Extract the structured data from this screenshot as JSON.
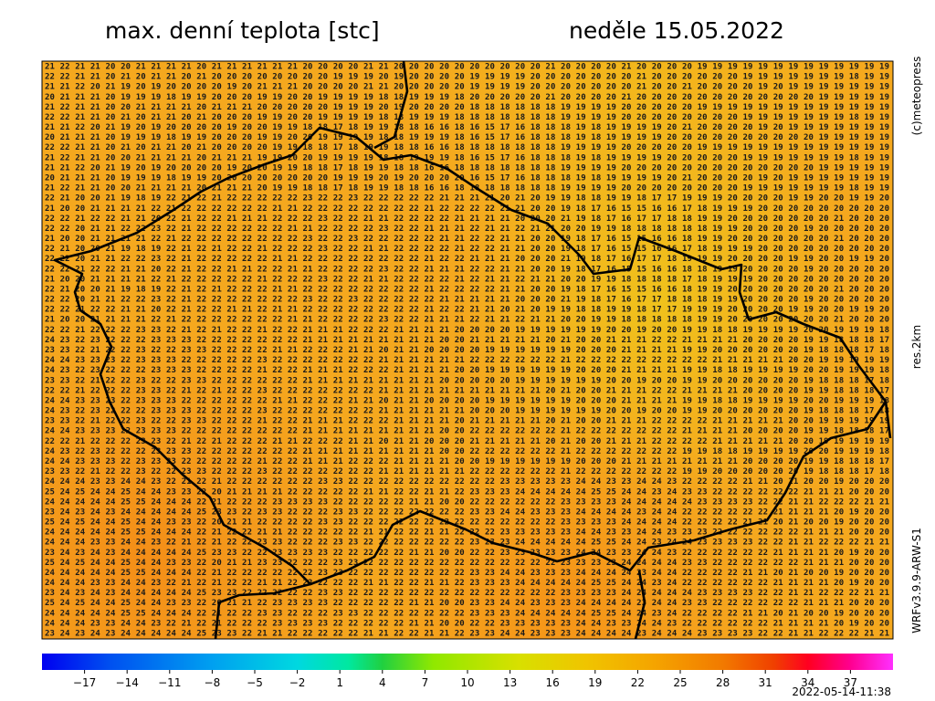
{
  "header": {
    "title": "max. denní teplota [stc]",
    "date": "neděle 15.05.2022"
  },
  "side": {
    "copyright": "(c)meteopress",
    "resolution": "res.2km",
    "model": "WRFv3.9.9-ARW-S1"
  },
  "footer": {
    "timestamp": "2022-05-14-11:38"
  },
  "colorbar": {
    "lim": [
      -20,
      40
    ],
    "ticks": [
      {
        "value": -17,
        "label": "−17"
      },
      {
        "value": -14,
        "label": "−14"
      },
      {
        "value": -11,
        "label": "−11"
      },
      {
        "value": -8,
        "label": "−8"
      },
      {
        "value": -5,
        "label": "−5"
      },
      {
        "value": -2,
        "label": "−2"
      },
      1,
      4,
      7,
      10,
      13,
      16,
      19,
      22,
      25,
      28,
      31,
      34,
      37
    ]
  },
  "map": {
    "rows": [
      "21 22 21 21 20 20 21 21 21 21 20 21 21 21 21 21 21 20 20 20 20 21 21 20 20 20 20 20 20 20 20 20 20 21 20 20 20 20 21 20 20 20 20 19 19 19 19 19 19 19 19 19 19 19 19 19",
      "22 22 21 21 20 21 20 21 21 20 21 20 20 20 20 20 20 20 20 19 19 19 20 19 20 20 20 20 19 19 19 19 20 20 20 20 20 20 20 21 20 20 20 20 20 20 19 19 19 19 19 19 19 18 19 19",
      "21 21 22 20 21 19 20 19 20 20 20 20 19 20 21 21 21 20 20 20 20 21 21 20 20 20 20 20 19 19 19 19 20 20 20 20 20 20 20 21 20 20 21 20 20 20 20 19 20 19 19 19 19 19 19 19",
      "20 21 21 21 20 19 19 19 18 19 19 20 20 20 19 19 20 20 19 19 19 19 18 18 19 19 19 18 20 20 20 20 20 21 20 20 20 20 21 20 20 20 20 20 20 20 20 20 20 20 20 19 19 19 19 19",
      "21 22 21 21 20 20 21 21 21 21 20 21 21 21 20 20 20 20 20 19 19 19 20 19 20 20 20 20 18 18 18 18 18 18 19 19 19 19 20 20 20 20 20 19 19 19 19 19 19 19 19 19 19 19 19 19",
      "22 22 21 21 20 21 20 21 21 20 21 20 20 20 19 19 20 20 19 19 19 19 18 18 19 19 19 18 18 18 18 18 18 18 19 19 19 19 20 20 20 20 20 20 20 20 19 19 19 19 19 19 19 18 19 19",
      "21 21 22 20 21 19 20 19 20 20 20 20 19 20 20 19 19 18 18 17 18 19 19 18 18 16 16 18 16 15 17 16 18 18 18 19 18 19 19 19 19 20 21 20 20 20 20 19 20 19 19 19 19 19 19 19",
      "20 21 21 21 20 19 19 19 18 19 19 20 20 20 19 19 20 20 19 19 19 19 18 18 19 19 19 18 16 15 17 16 18 18 18 19 18 19 19 19 19 20 20 20 20 20 20 20 20 20 20 19 19 19 19 19",
      "22 22 21 21 20 21 20 21 21 20 21 20 20 20 20 19 19 18 18 17 18 19 19 18 18 16 16 18 18 18 18 18 18 18 19 19 19 19 20 20 20 20 20 19 19 19 19 19 19 19 19 19 19 19 19 19",
      "21 22 21 21 20 20 21 21 21 21 20 21 21 21 19 19 20 20 19 19 19 19 18 18 19 19 19 18 16 15 17 16 18 18 18 19 18 19 19 19 19 20 20 20 20 20 19 19 19 19 19 19 19 18 19 19",
      "21 21 22 20 21 19 20 19 20 20 20 20 19 20 20 19 19 18 18 17 18 19 19 18 18 16 16 18 18 18 18 18 18 18 19 19 19 19 20 20 20 20 20 20 20 20 20 20 20 20 20 19 19 19 19 19",
      "20 21 21 21 20 19 19 19 18 19 19 20 20 20 20 20 20 20 20 19 19 19 20 19 20 20 20 20 16 15 17 16 18 18 18 19 18 19 19 19 19 20 21 20 20 20 20 19 20 19 19 19 19 19 19 19",
      "21 22 21 21 20 20 21 21 21 21 20 21 21 21 20 19 19 18 18 17 18 19 19 18 18 16 16 18 18 18 18 18 18 18 19 19 19 19 20 20 20 20 20 20 20 20 19 19 19 19 19 19 19 18 19 19",
      "22 21 20 20 21 19 18 19 22 21 22 21 22 22 22 22 22 23 22 22 23 22 22 22 22 22 21 21 21 21 20 21 20 19 19 18 18 19 19 18 17 17 19 19 19 20 20 20 20 19 19 20 20 19 19 20",
      "21 20 20 21 21 21 21 22 21 22 22 22 22 22 22 21 21 22 22 22 22 22 22 22 22 21 22 22 22 22 21 21 20 20 19 18 17 16 15 15 16 16 17 18 19 19 19 20 20 20 20 20 20 20 20 20",
      "22 22 21 22 22 21 21 20 22 21 22 22 21 21 21 22 22 22 23 22 22 21 21 22 22 22 22 21 21 21 21 20 20 20 21 19 18 17 16 17 17 18 18 19 19 20 20 20 20 20 20 20 21 20 20 20",
      "22 22 20 21 21 22 22 23 22 21 22 22 22 22 22 22 21 21 22 22 22 22 23 22 22 21 21 21 22 21 21 22 21 21 20 20 19 19 18 18 18 18 18 18 19 19 20 20 20 20 19 20 20 20 20 20",
      "21 20 20 21 21 21 21 22 21 22 22 22 22 22 22 22 22 23 22 22 23 22 22 22 22 22 21 21 22 22 21 21 20 20 19 18 17 16 15 15 16 16 18 19 19 20 20 20 20 20 20 20 21 20 20 20",
      "22 21 20 20 21 19 18 19 22 21 22 21 22 22 21 22 22 22 23 22 22 21 21 22 22 22 22 21 22 22 21 21 20 20 19 18 17 16 15 15 16 16 17 18 19 19 19 20 20 20 20 20 20 20 20 20",
      "22 22 20 21 21 22 22 23 22 21 22 22 22 22 22 21 21 22 22 22 22 22 22 22 22 21 22 22 21 21 21 20 20 20 21 19 18 17 16 17 17 18 19 19 19 20 20 20 20 19 19 20 20 19 19 20",
      "22 22 21 22 22 21 21 20 22 21 22 22 21 21 22 22 21 21 22 22 22 22 23 22 22 21 21 21 22 22 21 21 20 20 19 18 17 16 15 15 16 16 18 18 19 19 20 20 20 20 19 20 20 20 20 20",
      "21 20 20 21 21 21 21 22 21 22 22 22 22 22 21 22 22 22 23 22 22 21 21 22 22 22 22 21 22 21 21 22 21 21 20 20 19 19 18 18 18 18 17 18 19 19 19 20 20 20 20 20 20 20 20 20",
      "22 21 20 20 21 19 18 19 22 21 22 21 22 22 22 21 21 22 22 22 22 22 22 22 22 21 22 22 22 22 21 21 20 20 19 18 17 16 15 15 16 16 18 19 19 20 20 20 20 20 20 20 21 20 20 20",
      "22 22 20 21 21 22 22 23 22 21 22 22 22 22 22 22 22 23 22 22 23 22 22 22 22 22 21 21 21 21 21 20 20 20 21 19 18 17 16 17 17 18 18 18 19 19 20 20 20 20 19 20 20 20 20 20",
      "22 22 21 22 22 21 21 20 22 21 22 22 21 21 22 21 21 22 22 22 22 22 22 22 22 21 22 22 21 21 20 21 20 19 19 18 18 19 19 18 17 17 19 19 19 20 20 20 20 19 19 20 20 19 19 20",
      "21 20 20 21 21 21 21 22 21 22 22 22 22 22 22 22 21 21 22 22 22 22 23 22 22 21 21 21 22 21 21 22 21 21 20 20 19 19 18 18 18 18 18 19 19 20 20 20 20 20 20 20 21 20 20 20",
      "22 22 21 22 22 22 23 23 22 21 22 21 22 22 21 22 22 21 21 21 22 22 22 21 21 21 21 20 20 20 20 19 19 19 19 19 19 20 20 19 20 20 19 19 18 18 19 19 19 19 20 20 19 19 19 18",
      "24 23 22 23 22 22 22 23 23 23 22 22 22 22 22 22 22 21 21 21 21 21 21 21 21 21 20 20 21 21 21 21 21 20 21 20 20 21 21 21 22 22 21 21 21 21 20 20 20 20 19 19 18 18 18 17",
      "23 23 22 21 22 22 23 22 22 23 23 22 22 22 22 21 21 22 22 22 21 21 20 21 21 20 20 20 20 19 19 19 19 19 19 20 20 20 21 21 21 21 19 19 20 20 20 20 20 20 19 18 18 18 17 18",
      "24 24 23 23 23 22 23 23 23 22 22 22 22 22 23 22 22 22 22 22 22 22 21 21 21 21 21 21 22 22 22 22 22 22 21 22 22 22 22 22 22 22 22 22 21 21 21 21 21 20 20 19 19 19 19 19",
      "24 23 22 23 22 22 22 23 23 23 22 22 22 22 21 22 22 21 21 21 22 22 22 21 21 21 21 20 20 19 19 19 19 19 19 20 20 20 21 21 21 21 19 19 18 18 19 19 19 19 20 20 19 19 19 18",
      "23 23 22 21 22 22 23 22 22 23 23 22 22 22 22 22 22 21 21 21 21 21 21 21 21 21 20 20 20 20 20 19 19 19 19 19 19 20 20 19 20 20 19 19 20 20 20 20 20 20 19 18 18 18 17 18",
      "22 22 21 22 22 22 23 23 22 21 22 21 22 22 23 22 22 22 22 22 22 22 21 21 21 21 21 21 21 21 21 21 21 20 21 20 20 21 21 21 22 22 21 21 21 21 20 20 20 20 19 19 18 18 18 17",
      "24 24 23 23 23 22 23 23 23 22 22 22 22 22 22 21 21 22 22 22 21 21 20 21 21 20 20 20 20 19 19 19 19 19 19 20 20 20 21 21 21 21 19 19 18 18 19 19 19 19 20 20 19 19 19 18",
      "24 23 22 23 22 22 22 23 23 23 22 22 22 22 23 22 22 22 22 22 22 22 21 21 21 21 21 21 20 20 20 19 19 19 19 19 19 20 20 19 20 20 19 19 20 20 20 20 20 20 19 18 18 18 17 18",
      "23 23 22 21 22 22 23 22 22 23 23 22 22 22 21 22 22 21 21 21 22 22 22 21 21 21 21 20 21 21 21 21 21 20 21 20 20 21 21 21 22 22 22 22 21 21 21 21 21 20 20 19 19 19 19 19",
      "24 24 23 23 23 22 23 23 23 22 22 22 22 22 22 22 22 21 21 21 21 21 21 21 21 21 20 20 22 22 22 22 22 22 21 22 22 22 22 22 22 22 21 21 21 21 20 20 20 20 19 19 18 18 18 17",
      "22 22 21 22 22 22 23 23 22 21 22 21 22 22 22 21 21 22 22 22 21 21 20 21 21 20 20 20 21 21 21 21 21 20 21 20 20 21 21 21 22 22 22 22 21 21 21 21 21 20 20 19 19 19 19 19",
      "24 23 22 23 22 22 22 23 23 23 22 22 22 22 22 22 22 21 21 21 21 21 21 21 21 21 20 20 22 22 22 22 22 22 21 22 22 22 22 22 22 22 19 19 18 18 19 19 19 19 20 20 19 19 19 18",
      "24 24 23 23 23 22 23 23 23 22 22 22 22 22 21 22 22 21 21 21 22 22 22 21 21 21 21 20 20 19 19 19 19 19 19 20 20 20 21 21 21 21 21 21 21 21 20 20 20 20 19 19 18 18 18 17",
      "23 23 22 21 22 22 23 22 22 23 23 22 22 22 23 22 22 22 22 22 22 22 21 21 21 21 21 21 22 22 22 22 22 22 21 22 22 22 22 22 22 22 19 19 20 20 20 20 20 20 19 18 18 18 17 18",
      "24 24 24 23 23 24 24 23 22 21 22 21 22 22 22 22 22 22 23 23 22 22 22 22 22 22 22 22 22 22 23 23 23 23 23 24 24 23 23 24 24 23 22 22 22 22 21 21 20 21 20 20 19 20 20 20",
      "25 24 25 24 24 25 24 24 23 23 22 20 21 21 21 21 22 22 22 22 22 21 21 22 22 21 21 22 23 23 23 24 24 24 24 24 25 25 24 24 23 24 23 23 22 22 22 22 22 22 21 21 21 20 20 20",
      "24 24 24 24 24 25 25 24 24 24 22 21 22 22 22 23 23 23 23 22 22 22 22 22 21 21 20 20 22 22 22 22 22 22 23 23 23 23 24 24 24 24 24 23 23 23 23 22 22 21 21 22 22 22 21 21",
      "23 24 23 24 23 24 24 24 24 24 25 23 23 22 23 23 22 22 22 23 23 22 22 22 22 22 22 22 23 23 24 24 23 23 23 24 24 24 24 23 24 24 22 22 22 22 22 22 21 21 21 21 20 19 20 20",
      "25 24 25 24 24 25 24 24 23 23 22 20 21 21 22 22 22 22 23 23 22 22 22 22 22 22 22 22 22 22 22 22 22 22 23 23 23 23 24 24 24 24 22 22 22 22 21 21 20 21 20 20 19 20 20 20",
      "24 24 24 24 24 25 25 24 24 24 22 21 22 22 21 21 22 22 22 22 22 21 21 22 22 21 21 22 22 22 23 23 23 23 23 24 24 23 23 24 24 23 23 23 22 22 22 22 22 22 21 21 21 20 20 20",
      "24 24 24 23 23 24 24 23 22 21 22 21 22 22 23 23 22 22 22 23 23 22 22 22 22 22 22 22 23 23 23 24 24 24 24 24 25 25 24 24 23 24 24 23 23 23 23 22 22 21 21 22 22 22 21 21",
      "23 24 23 24 23 24 24 24 24 24 25 23 23 22 22 23 23 23 23 22 22 22 22 22 21 21 20 20 22 22 23 23 23 23 23 24 24 23 23 24 24 23 22 22 22 22 22 22 21 21 21 21 20 19 20 20",
      "25 24 25 24 24 25 24 24 23 23 22 20 21 21 23 23 22 22 22 23 23 22 22 22 22 22 22 22 22 22 22 22 22 22 23 23 23 23 24 24 24 24 23 23 22 22 22 22 22 22 21 21 21 20 20 20",
      "24 24 24 24 24 25 25 24 24 24 22 21 22 22 22 22 22 22 23 23 22 22 22 22 22 22 22 22 23 23 24 24 23 23 23 24 24 24 24 23 24 24 22 22 22 22 21 21 20 21 20 20 19 20 20 20",
      "24 24 24 23 23 24 24 23 22 21 22 21 22 22 21 21 22 22 22 22 22 21 21 22 22 21 21 22 23 23 23 24 24 24 24 24 25 25 24 24 23 24 22 22 22 22 22 22 21 21 21 21 20 19 20 20",
      "23 24 23 24 23 24 24 24 24 24 25 23 23 22 22 22 22 22 23 23 22 22 22 22 22 22 22 22 22 22 22 22 22 22 23 23 23 23 24 24 24 24 24 23 23 23 23 22 22 21 21 22 22 22 21 21",
      "25 24 25 24 24 25 24 24 23 23 22 20 21 21 22 23 23 23 23 22 22 22 22 22 21 21 20 20 23 23 24 24 23 23 23 24 24 24 24 23 24 24 23 23 22 22 22 22 22 22 21 21 21 20 20 20",
      "24 24 24 24 24 25 25 24 24 24 22 21 22 22 23 23 22 22 22 23 23 22 22 22 22 22 22 22 23 23 23 24 24 24 24 24 25 25 24 24 23 24 22 22 22 22 21 21 20 21 20 20 19 20 20 20",
      "24 24 24 23 23 24 24 23 22 21 22 21 22 22 22 23 23 23 23 22 22 22 22 22 21 21 20 20 22 22 23 23 23 23 23 24 24 23 23 24 24 23 22 22 22 22 22 22 21 21 21 21 20 19 20 20",
      "23 24 23 24 23 24 24 24 24 24 25 23 23 22 21 21 22 22 22 22 22 21 21 22 22 21 21 22 23 23 24 24 23 23 23 24 24 24 24 23 24 24 24 23 23 23 23 22 22 21 21 22 22 22 21 21"
    ]
  }
}
